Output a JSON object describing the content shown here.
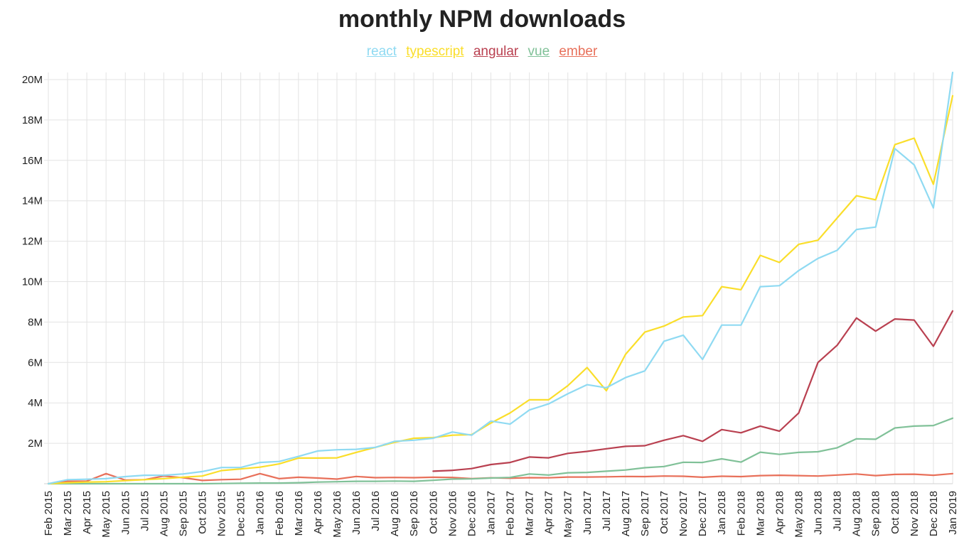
{
  "chart_data": {
    "type": "line",
    "title": "monthly NPM downloads",
    "xlabel": "",
    "ylabel": "",
    "categories": [
      "Feb 2015",
      "Mar 2015",
      "Apr 2015",
      "May 2015",
      "Jun 2015",
      "Jul 2015",
      "Aug 2015",
      "Sep 2015",
      "Oct 2015",
      "Nov 2015",
      "Dec 2015",
      "Jan 2016",
      "Feb 2016",
      "Mar 2016",
      "Apr 2016",
      "May 2016",
      "Jun 2016",
      "Jul 2016",
      "Aug 2016",
      "Sep 2016",
      "Oct 2016",
      "Nov 2016",
      "Dec 2016",
      "Jan 2017",
      "Feb 2017",
      "Mar 2017",
      "Apr 2017",
      "May 2017",
      "Jun 2017",
      "Jul 2017",
      "Aug 2017",
      "Sep 2017",
      "Oct 2017",
      "Nov 2017",
      "Dec 2017",
      "Jan 2018",
      "Feb 2018",
      "Mar 2018",
      "Apr 2018",
      "May 2018",
      "Jun 2018",
      "Jul 2018",
      "Aug 2018",
      "Sep 2018",
      "Oct 2018",
      "Nov 2018",
      "Dec 2018",
      "Jan 2019"
    ],
    "ylim": [
      0,
      20000000
    ],
    "yticks": [
      {
        "value": 2000000,
        "label": "2M"
      },
      {
        "value": 4000000,
        "label": "4M"
      },
      {
        "value": 6000000,
        "label": "6M"
      },
      {
        "value": 8000000,
        "label": "8M"
      },
      {
        "value": 10000000,
        "label": "10M"
      },
      {
        "value": 12000000,
        "label": "12M"
      },
      {
        "value": 14000000,
        "label": "14M"
      },
      {
        "value": 16000000,
        "label": "16M"
      },
      {
        "value": 18000000,
        "label": "18M"
      },
      {
        "value": 20000000,
        "label": "20M"
      }
    ],
    "grid": true,
    "legend_position": "top-center",
    "series": [
      {
        "name": "react",
        "color": "#8fdaf2",
        "values": [
          0,
          200000,
          220000,
          250000,
          350000,
          420000,
          420000,
          480000,
          600000,
          800000,
          800000,
          1050000,
          1100000,
          1350000,
          1620000,
          1680000,
          1700000,
          1800000,
          2100000,
          2150000,
          2250000,
          2560000,
          2400000,
          3100000,
          2950000,
          3650000,
          3950000,
          4450000,
          4900000,
          4750000,
          5250000,
          5580000,
          7050000,
          7350000,
          6150000,
          7850000,
          7850000,
          9750000,
          9800000,
          10550000,
          11150000,
          11550000,
          12580000,
          12700000,
          16580000,
          15780000,
          13650000,
          20350000
        ]
      },
      {
        "name": "typescript",
        "color": "#fade2a",
        "values": [
          0,
          50000,
          80000,
          100000,
          150000,
          200000,
          250000,
          320000,
          380000,
          650000,
          730000,
          820000,
          980000,
          1270000,
          1270000,
          1280000,
          1550000,
          1800000,
          2050000,
          2250000,
          2280000,
          2400000,
          2430000,
          3000000,
          3500000,
          4150000,
          4150000,
          4850000,
          5750000,
          4600000,
          6400000,
          7500000,
          7800000,
          8250000,
          8320000,
          9750000,
          9600000,
          11300000,
          10950000,
          11850000,
          12050000,
          13150000,
          14250000,
          14050000,
          16780000,
          17100000,
          14820000,
          19200000
        ]
      },
      {
        "name": "angular",
        "color": "#b94050",
        "values": [
          null,
          null,
          null,
          null,
          null,
          null,
          null,
          null,
          null,
          null,
          null,
          null,
          null,
          null,
          null,
          null,
          null,
          null,
          null,
          null,
          620000,
          660000,
          750000,
          950000,
          1050000,
          1320000,
          1280000,
          1500000,
          1600000,
          1730000,
          1850000,
          1880000,
          2150000,
          2380000,
          2100000,
          2680000,
          2520000,
          2850000,
          2600000,
          3500000,
          6000000,
          6850000,
          8200000,
          7550000,
          8150000,
          8100000,
          6800000,
          8550000
        ]
      },
      {
        "name": "vue",
        "color": "#80c198",
        "values": [
          0,
          0,
          0,
          0,
          0,
          0,
          0,
          0,
          0,
          10000,
          20000,
          30000,
          30000,
          50000,
          80000,
          100000,
          120000,
          120000,
          130000,
          120000,
          170000,
          230000,
          240000,
          280000,
          310000,
          480000,
          430000,
          540000,
          560000,
          620000,
          680000,
          790000,
          850000,
          1060000,
          1050000,
          1230000,
          1070000,
          1560000,
          1450000,
          1550000,
          1580000,
          1780000,
          2220000,
          2200000,
          2760000,
          2850000,
          2880000,
          3240000
        ]
      },
      {
        "name": "ember",
        "color": "#e8705a",
        "values": [
          0,
          120000,
          130000,
          500000,
          180000,
          200000,
          380000,
          300000,
          160000,
          200000,
          220000,
          500000,
          250000,
          320000,
          280000,
          230000,
          360000,
          300000,
          310000,
          300000,
          320000,
          310000,
          250000,
          290000,
          270000,
          300000,
          290000,
          330000,
          330000,
          340000,
          360000,
          350000,
          380000,
          370000,
          320000,
          370000,
          350000,
          400000,
          420000,
          400000,
          380000,
          430000,
          480000,
          400000,
          460000,
          470000,
          420000,
          500000
        ]
      }
    ]
  }
}
